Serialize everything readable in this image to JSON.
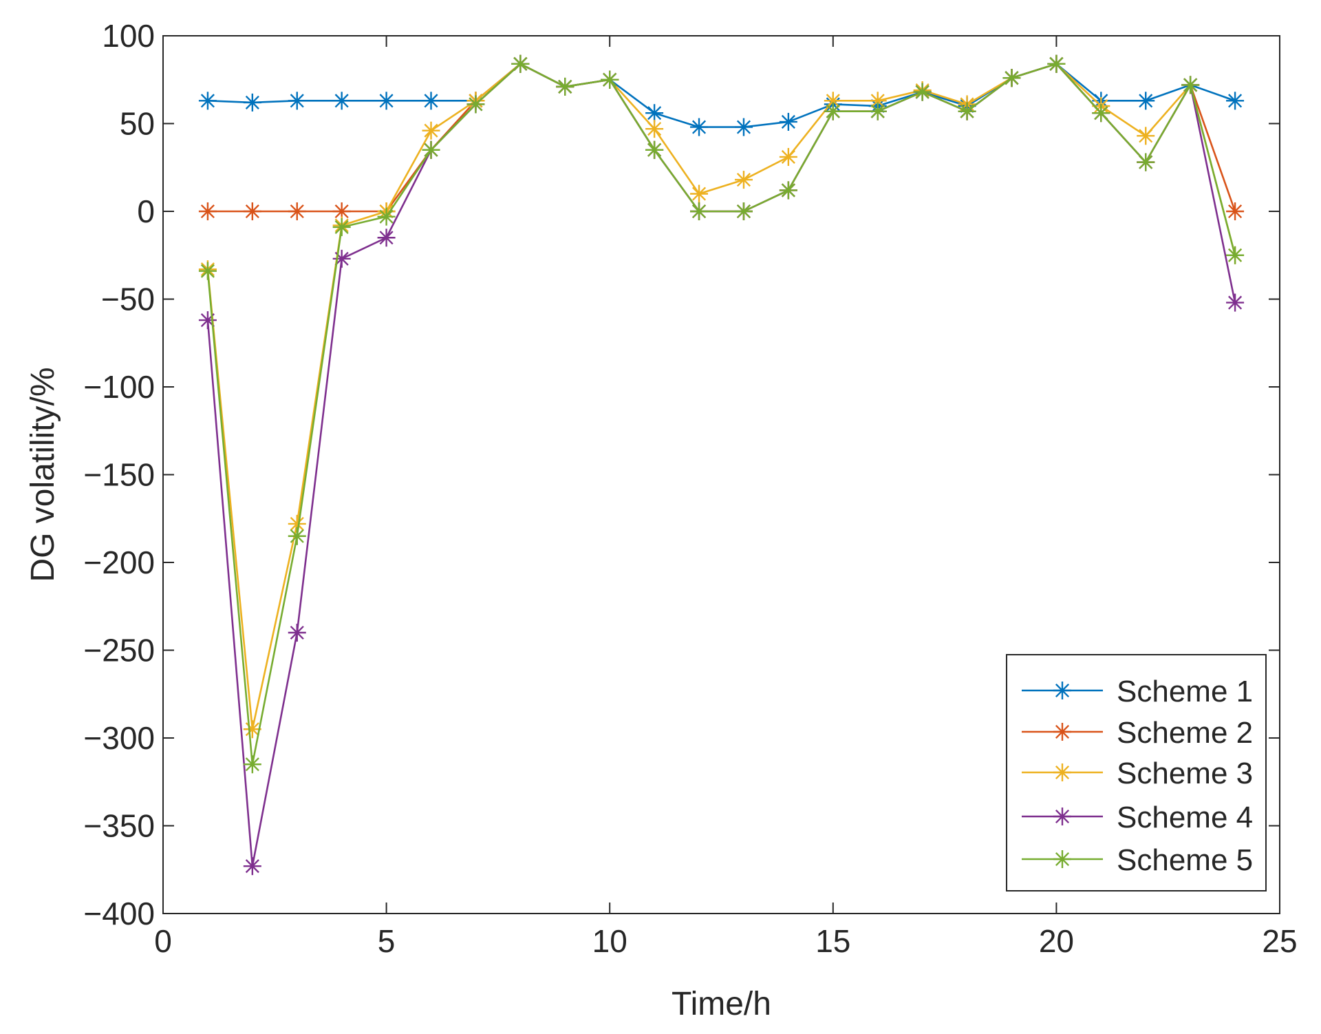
{
  "chart_data": {
    "type": "line",
    "title": "",
    "xlabel": "Time/h",
    "ylabel": "DG volatility/%",
    "xlim": [
      0,
      25
    ],
    "ylim": [
      -400,
      100
    ],
    "xticks": [
      0,
      5,
      10,
      15,
      20,
      25
    ],
    "yticks": [
      100,
      50,
      0,
      -50,
      -100,
      -150,
      -200,
      -250,
      -300,
      -350,
      -400
    ],
    "xtick_labels": [
      "0",
      "5",
      "10",
      "15",
      "20",
      "25"
    ],
    "ytick_labels": [
      "100",
      "50",
      "0",
      "−50",
      "−100",
      "−150",
      "−200",
      "−250",
      "−300",
      "−350",
      "−400"
    ],
    "grid": false,
    "legend_position": "bottom-right",
    "marker": "asterisk",
    "x": [
      1,
      2,
      3,
      4,
      5,
      6,
      7,
      8,
      9,
      10,
      11,
      12,
      13,
      14,
      15,
      16,
      17,
      18,
      19,
      20,
      21,
      22,
      23,
      24
    ],
    "series": [
      {
        "name": "Scheme 1",
        "color": "#0072BD",
        "values": [
          63,
          62,
          63,
          63,
          63,
          63,
          63,
          84,
          71,
          75,
          56,
          48,
          48,
          51,
          61,
          60,
          68,
          60,
          76,
          84,
          63,
          63,
          72,
          63
        ]
      },
      {
        "name": "Scheme 2",
        "color": "#D95319",
        "values": [
          0,
          0,
          0,
          0,
          0,
          35,
          63,
          84,
          71,
          75,
          35,
          0,
          0,
          12,
          57,
          57,
          68,
          57,
          76,
          84,
          56,
          28,
          72,
          0
        ]
      },
      {
        "name": "Scheme 3",
        "color": "#EDB120",
        "values": [
          -33,
          -295,
          -178,
          -8,
          0,
          46,
          63,
          84,
          71,
          75,
          47,
          10,
          18,
          31,
          63,
          63,
          69,
          61,
          76,
          84,
          60,
          43,
          72,
          -25
        ]
      },
      {
        "name": "Scheme 4",
        "color": "#7E2F8E",
        "values": [
          -62,
          -373,
          -240,
          -27,
          -15,
          35,
          61,
          84,
          71,
          75,
          35,
          0,
          0,
          12,
          57,
          57,
          68,
          57,
          76,
          84,
          56,
          28,
          72,
          -52
        ]
      },
      {
        "name": "Scheme 5",
        "color": "#77AC30",
        "values": [
          -34,
          -315,
          -185,
          -9,
          -3,
          35,
          61,
          84,
          71,
          75,
          35,
          0,
          0,
          12,
          57,
          57,
          68,
          57,
          76,
          84,
          56,
          28,
          72,
          -25
        ]
      }
    ]
  }
}
